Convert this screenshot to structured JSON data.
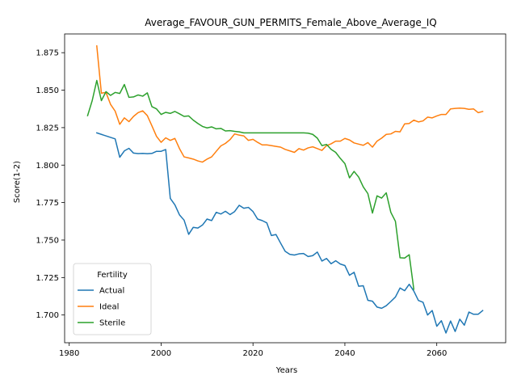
{
  "chart_data": {
    "type": "line",
    "title": "Average_FAVOUR_GUN_PERMITS_Female_Above_Average_IQ",
    "xlabel": "Years",
    "ylabel": "Score(1-2)",
    "xlim": [
      1979,
      2075
    ],
    "ylim": [
      1.6815,
      1.8875
    ],
    "xticks": [
      1980,
      2000,
      2020,
      2040,
      2060
    ],
    "yticks": [
      1.7,
      1.725,
      1.75,
      1.775,
      1.8,
      1.825,
      1.85,
      1.875
    ],
    "ytick_labels": [
      "1.700",
      "1.725",
      "1.750",
      "1.775",
      "1.800",
      "1.825",
      "1.850",
      "1.875"
    ],
    "grid": false,
    "legend": {
      "title": "Fertility",
      "placement": "lower-left"
    },
    "series": [
      {
        "name": "Actual",
        "color": "#1f77b4",
        "x": [
          1986,
          1990,
          1991,
          1992,
          1993,
          1994,
          1995,
          1996,
          1997,
          1998,
          1999,
          2000,
          2001,
          2002,
          2003,
          2004,
          2005,
          2006,
          2007,
          2008,
          2009,
          2010,
          2011,
          2012,
          2013,
          2014,
          2015,
          2016,
          2017,
          2018,
          2019,
          2020,
          2021,
          2022,
          2023,
          2024,
          2025,
          2026,
          2027,
          2028,
          2029,
          2030,
          2031,
          2032,
          2033,
          2034,
          2035,
          2036,
          2037,
          2038,
          2039,
          2040,
          2041,
          2042,
          2043,
          2044,
          2045,
          2046,
          2047,
          2048,
          2049,
          2050,
          2051,
          2052,
          2053,
          2054,
          2055,
          2056,
          2057,
          2058,
          2059,
          2060,
          2061,
          2062,
          2063,
          2064,
          2065,
          2066,
          2067,
          2068,
          2069,
          2070
        ],
        "y": [
          1.8215,
          1.8175,
          1.8052,
          1.8095,
          1.8112,
          1.808,
          1.8077,
          1.8078,
          1.8076,
          1.8078,
          1.8092,
          1.8092,
          1.8104,
          1.7778,
          1.7735,
          1.7668,
          1.7633,
          1.7538,
          1.7585,
          1.758,
          1.76,
          1.764,
          1.763,
          1.7685,
          1.7674,
          1.7692,
          1.767,
          1.769,
          1.7732,
          1.7712,
          1.7718,
          1.769,
          1.764,
          1.763,
          1.7615,
          1.753,
          1.7537,
          1.748,
          1.7425,
          1.7405,
          1.74,
          1.7408,
          1.741,
          1.739,
          1.7396,
          1.742,
          1.736,
          1.7377,
          1.7342,
          1.7362,
          1.734,
          1.733,
          1.7265,
          1.7285,
          1.7192,
          1.7195,
          1.7098,
          1.7092,
          1.7053,
          1.7045,
          1.7062,
          1.709,
          1.712,
          1.718,
          1.7162,
          1.7205,
          1.716,
          1.7097,
          1.7085,
          1.7,
          1.703,
          1.6925,
          1.6962,
          1.688,
          1.696,
          1.689,
          1.6972,
          1.6932,
          1.702,
          1.7005,
          1.7005,
          1.703
        ]
      },
      {
        "name": "Ideal",
        "color": "#ff7f0e",
        "x": [
          1986,
          1987,
          1988,
          1989,
          1990,
          1991,
          1992,
          1993,
          1994,
          1995,
          1996,
          1997,
          1998,
          1999,
          2000,
          2001,
          2002,
          2003,
          2004,
          2005,
          2006,
          2007,
          2008,
          2009,
          2010,
          2011,
          2012,
          2013,
          2014,
          2015,
          2016,
          2017,
          2018,
          2019,
          2020,
          2021,
          2022,
          2023,
          2024,
          2025,
          2026,
          2027,
          2028,
          2029,
          2030,
          2031,
          2032,
          2033,
          2034,
          2035,
          2036,
          2037,
          2038,
          2039,
          2040,
          2041,
          2042,
          2043,
          2044,
          2045,
          2046,
          2047,
          2048,
          2049,
          2050,
          2051,
          2052,
          2053,
          2054,
          2055,
          2056,
          2057,
          2058,
          2059,
          2060,
          2061,
          2062,
          2063,
          2064,
          2065,
          2066,
          2067,
          2068,
          2069,
          2070
        ],
        "y": [
          1.8795,
          1.848,
          1.8485,
          1.8405,
          1.836,
          1.8272,
          1.8315,
          1.829,
          1.8325,
          1.835,
          1.8362,
          1.833,
          1.8262,
          1.8192,
          1.8152,
          1.8182,
          1.8165,
          1.8178,
          1.811,
          1.8055,
          1.8048,
          1.804,
          1.8028,
          1.802,
          1.804,
          1.8055,
          1.8092,
          1.8128,
          1.8145,
          1.817,
          1.8208,
          1.82,
          1.8195,
          1.8165,
          1.8172,
          1.8152,
          1.8135,
          1.8135,
          1.813,
          1.8125,
          1.812,
          1.8105,
          1.8095,
          1.8085,
          1.811,
          1.81,
          1.8115,
          1.8122,
          1.811,
          1.8098,
          1.813,
          1.8142,
          1.816,
          1.816,
          1.8178,
          1.8168,
          1.8148,
          1.814,
          1.8132,
          1.815,
          1.812,
          1.816,
          1.818,
          1.8205,
          1.8208,
          1.8225,
          1.8222,
          1.8275,
          1.8278,
          1.83,
          1.8288,
          1.8295,
          1.832,
          1.8315,
          1.8328,
          1.8338,
          1.8338,
          1.8375,
          1.8378,
          1.838,
          1.8378,
          1.8372,
          1.8375,
          1.835,
          1.8358
        ]
      },
      {
        "name": "Sterile",
        "color": "#2ca02c",
        "x": [
          1984,
          1985,
          1986,
          1987,
          1988,
          1989,
          1990,
          1991,
          1992,
          1993,
          1994,
          1995,
          1996,
          1997,
          1998,
          1999,
          2000,
          2001,
          2002,
          2003,
          2004,
          2005,
          2006,
          2007,
          2008,
          2009,
          2010,
          2011,
          2012,
          2013,
          2014,
          2015,
          2016,
          2017,
          2018,
          2019,
          2020,
          2021,
          2022,
          2023,
          2024,
          2025,
          2026,
          2027,
          2028,
          2029,
          2030,
          2031,
          2032,
          2033,
          2034,
          2035,
          2036,
          2037,
          2038,
          2039,
          2040,
          2041,
          2042,
          2043,
          2044,
          2045,
          2046,
          2047,
          2048,
          2049,
          2050,
          2051,
          2052,
          2053,
          2054,
          2055
        ],
        "y": [
          1.833,
          1.843,
          1.8565,
          1.843,
          1.849,
          1.8465,
          1.8485,
          1.8478,
          1.8538,
          1.8452,
          1.8455,
          1.8468,
          1.846,
          1.8482,
          1.839,
          1.8375,
          1.8338,
          1.8352,
          1.8345,
          1.8358,
          1.8342,
          1.8325,
          1.8328,
          1.83,
          1.8278,
          1.8258,
          1.8248,
          1.8255,
          1.8242,
          1.8245,
          1.8228,
          1.823,
          1.8225,
          1.8222,
          1.8215,
          1.8215,
          1.8215,
          1.8215,
          1.8215,
          1.8215,
          1.8215,
          1.8215,
          1.8215,
          1.8215,
          1.8215,
          1.8215,
          1.8215,
          1.8215,
          1.8213,
          1.8205,
          1.818,
          1.813,
          1.8138,
          1.8105,
          1.8085,
          1.8045,
          1.801,
          1.7915,
          1.7958,
          1.792,
          1.7855,
          1.781,
          1.768,
          1.7795,
          1.778,
          1.7815,
          1.7685,
          1.7625,
          1.7382,
          1.738,
          1.7402,
          1.7172
        ]
      }
    ]
  }
}
